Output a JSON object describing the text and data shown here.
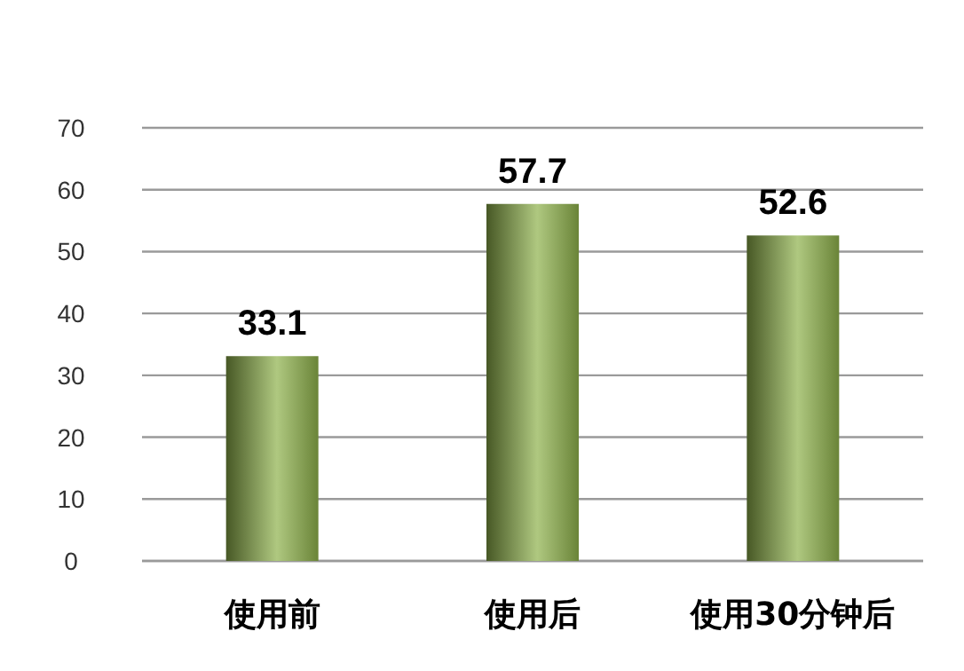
{
  "chart_data": {
    "type": "bar",
    "categories": [
      "使用前",
      "使用后",
      "使用30分钟后"
    ],
    "values": [
      33.1,
      57.7,
      52.6
    ],
    "color": "#8db04a",
    "ylim": [
      0,
      70
    ],
    "yticks": [
      0,
      10,
      20,
      30,
      40,
      50,
      60,
      70
    ],
    "grid": "y",
    "data_labels": true
  }
}
